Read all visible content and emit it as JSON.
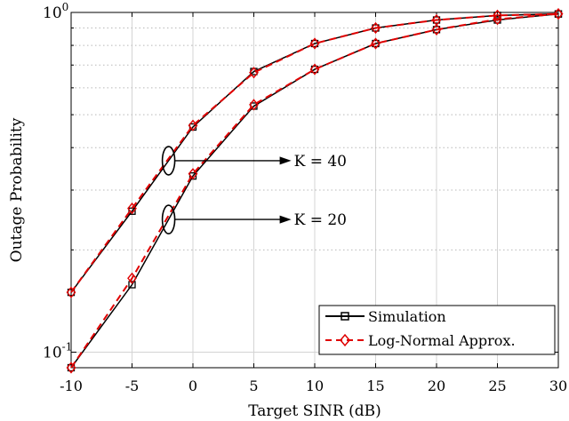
{
  "chart_data": {
    "type": "line",
    "xlabel": "Target SINR (dB)",
    "ylabel": "Outage Probability",
    "xlim": [
      -10,
      30
    ],
    "ylim": [
      0.09,
      1.0
    ],
    "y_scale": "log",
    "grid": true,
    "x_ticks": [
      -10,
      -5,
      0,
      5,
      10,
      15,
      20,
      25,
      30
    ],
    "x_tick_labels": [
      "-10",
      "-5",
      "0",
      "5",
      "10",
      "15",
      "20",
      "25",
      "30"
    ],
    "y_major_ticks": [
      {
        "value": 0.1,
        "base": "10",
        "exp": "-1"
      },
      {
        "value": 1.0,
        "base": "10",
        "exp": "0"
      }
    ],
    "legend": {
      "position": "bottom-right",
      "entries": [
        {
          "label": "Simulation",
          "color": "#000000",
          "marker": "square",
          "dash": "solid"
        },
        {
          "label": "Log-Normal Approx.",
          "color": "#e00000",
          "marker": "diamond",
          "dash": "dashed"
        }
      ]
    },
    "x": [
      -10,
      -5,
      0,
      5,
      10,
      15,
      20,
      25,
      30
    ],
    "series": [
      {
        "group": "K = 40",
        "kind": "simulation",
        "values": [
          0.15,
          0.26,
          0.46,
          0.67,
          0.81,
          0.9,
          0.95,
          0.98,
          0.99
        ]
      },
      {
        "group": "K = 40",
        "kind": "approximation",
        "values": [
          0.15,
          0.265,
          0.465,
          0.665,
          0.81,
          0.9,
          0.95,
          0.98,
          0.99
        ]
      },
      {
        "group": "K = 20",
        "kind": "simulation",
        "values": [
          0.09,
          0.158,
          0.33,
          0.53,
          0.68,
          0.81,
          0.89,
          0.95,
          0.99
        ]
      },
      {
        "group": "K = 20",
        "kind": "approximation",
        "values": [
          0.09,
          0.165,
          0.335,
          0.535,
          0.68,
          0.81,
          0.89,
          0.955,
          0.99
        ]
      }
    ],
    "annotations": [
      {
        "text": "K = 40",
        "target_group": "K = 40",
        "at_x": -2
      },
      {
        "text": "K = 20",
        "target_group": "K = 20",
        "at_x": -2
      }
    ]
  }
}
